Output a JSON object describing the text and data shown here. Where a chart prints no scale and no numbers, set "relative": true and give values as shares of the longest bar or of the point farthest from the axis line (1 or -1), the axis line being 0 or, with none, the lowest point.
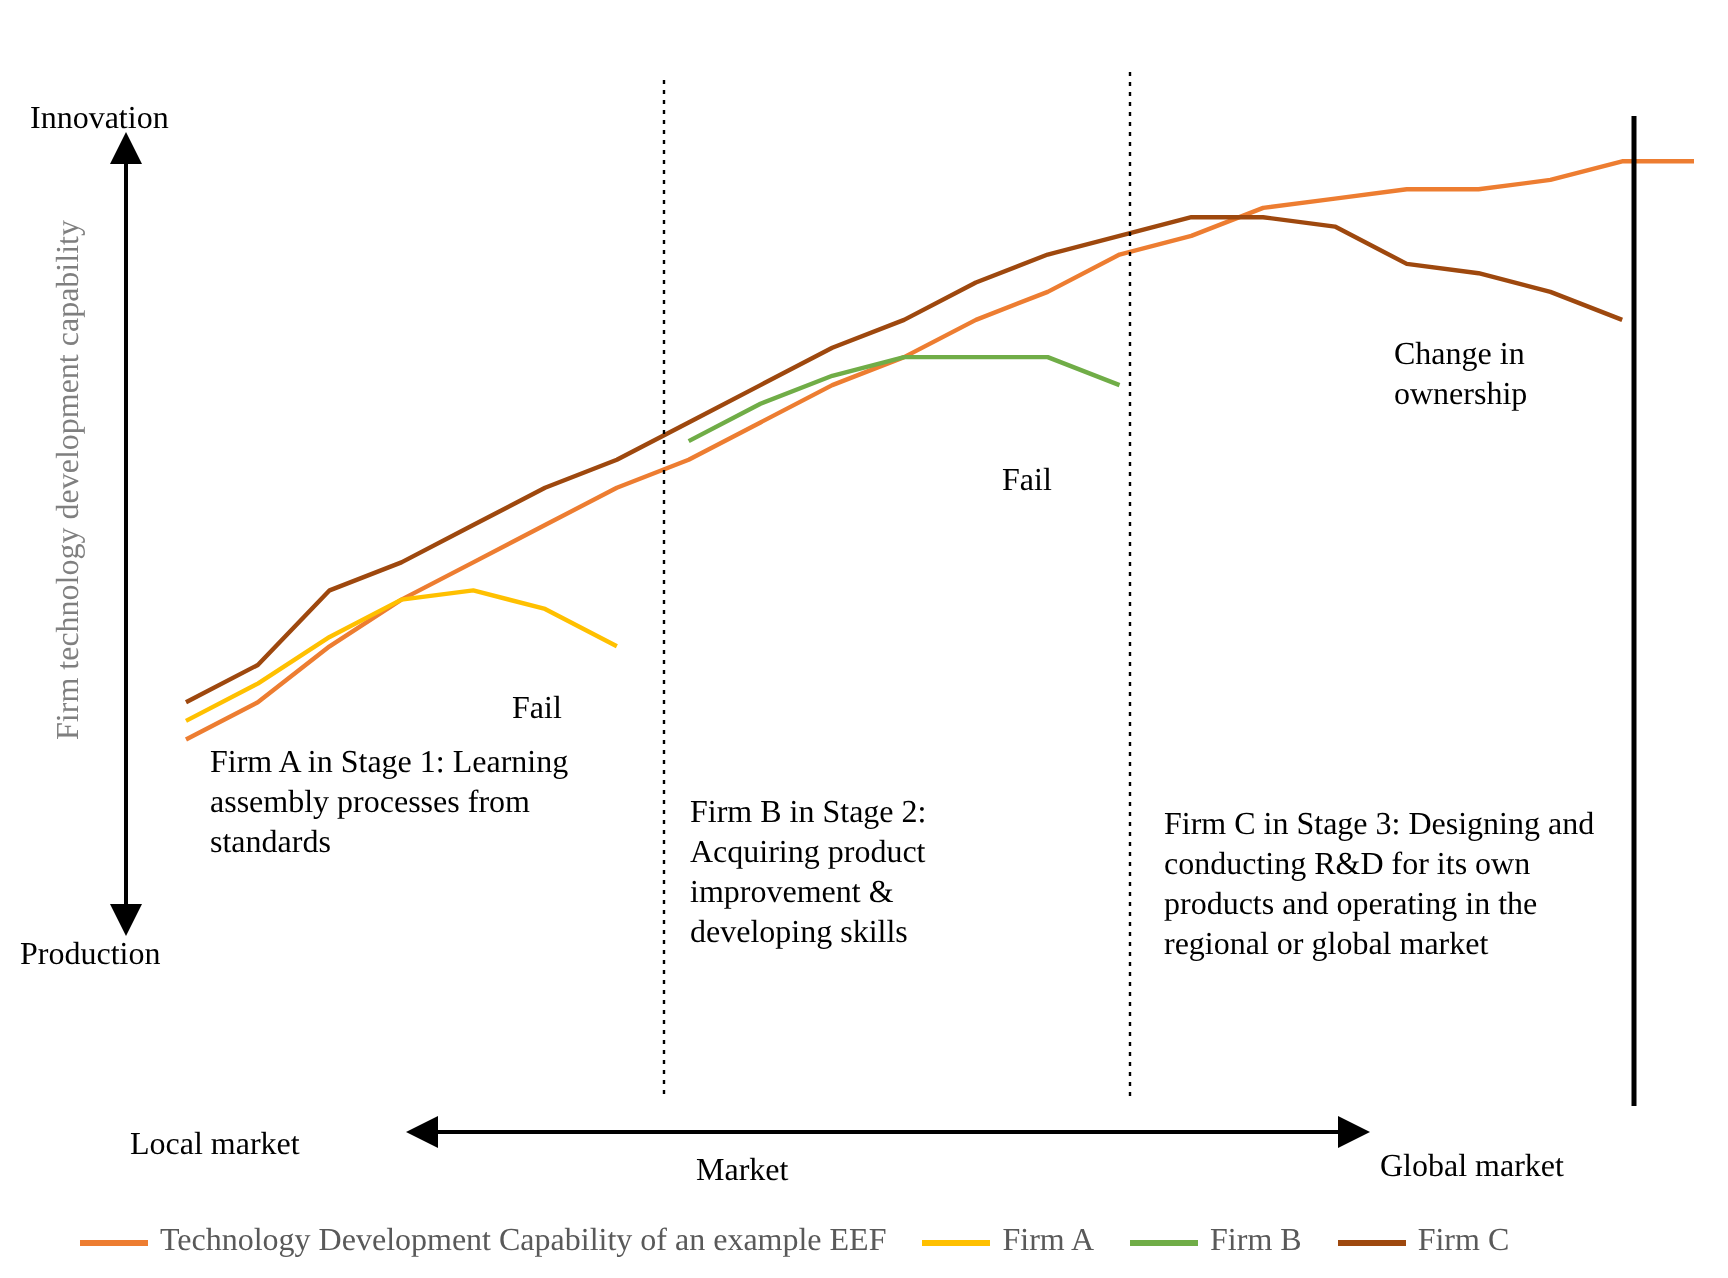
{
  "chart_data": {
    "type": "line",
    "relative": true,
    "ylabel": "Firm technology development capability",
    "categories": [
      null,
      null,
      null,
      null,
      null,
      null,
      null,
      null,
      null,
      null,
      null,
      null,
      null,
      null,
      null,
      null,
      null,
      null,
      null,
      null,
      null,
      null
    ],
    "ylim": [
      0,
      1.1
    ],
    "marker": "none",
    "line_style": "solid",
    "legend": "bottom",
    "series": [
      {
        "name": "Technology Development Capability of an example EEF",
        "color": "#ed7d31",
        "values": [
          0.38,
          0.42,
          0.48,
          0.53,
          0.57,
          0.61,
          0.65,
          0.68,
          0.72,
          0.76,
          0.79,
          0.83,
          0.86,
          0.9,
          0.92,
          0.95,
          0.96,
          0.97,
          0.97,
          0.98,
          1,
          1
        ]
      },
      {
        "name": "Firm A",
        "color": "#ffc000",
        "values": [
          0.4,
          0.44,
          0.49,
          0.53,
          0.54,
          0.52,
          0.48,
          null,
          null,
          null,
          null,
          null,
          null,
          null,
          null,
          null,
          null,
          null,
          null,
          null,
          null,
          null
        ]
      },
      {
        "name": "Firm B",
        "color": "#70ad47",
        "values": [
          null,
          null,
          null,
          null,
          null,
          null,
          null,
          0.7,
          0.74,
          0.77,
          0.79,
          0.79,
          0.79,
          0.76,
          null,
          null,
          null,
          null,
          null,
          null,
          null,
          null
        ]
      },
      {
        "name": "Firm C",
        "color": "#9e480e",
        "values": [
          0.42,
          0.46,
          0.54,
          0.57,
          0.61,
          0.65,
          0.68,
          0.72,
          0.76,
          0.8,
          0.83,
          0.87,
          0.9,
          0.92,
          0.94,
          0.94,
          0.93,
          0.89,
          0.88,
          0.86,
          0.83,
          null
        ]
      }
    ],
    "annotations": [
      "Innovation",
      "Production",
      "Local market",
      "Market",
      "Global market",
      "Fail",
      "Fail",
      "Change in ownership",
      "Firm A in Stage 1: Learning assembly processes from standards",
      "Firm B in Stage 2: Acquiring product improvement & developing skills",
      "Firm C in Stage 3: Designing and conducting R&D for its own products and operating in the regional or global market"
    ]
  }
}
